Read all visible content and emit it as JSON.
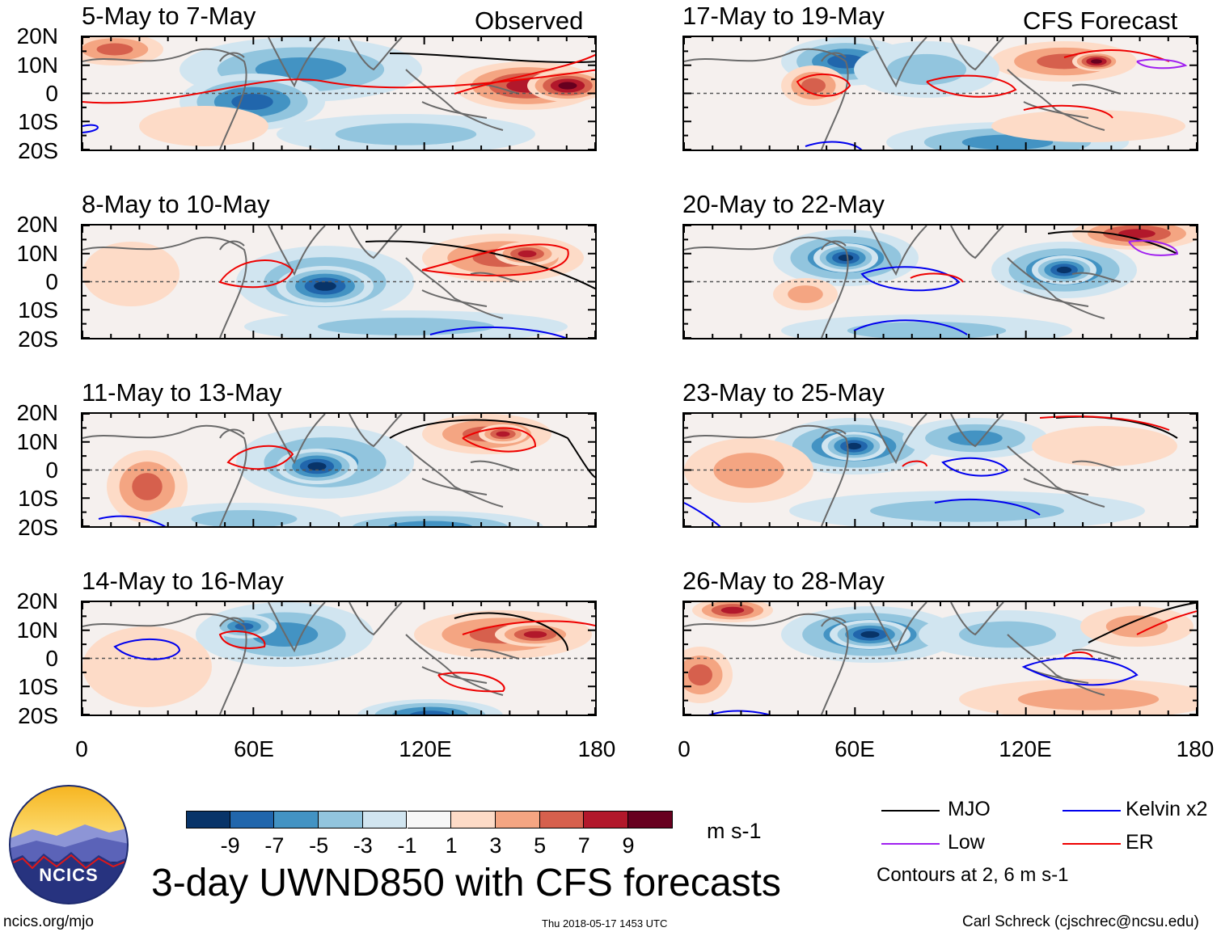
{
  "header": {
    "observed_label": "Observed",
    "forecast_label": "CFS Forecast"
  },
  "panels": [
    {
      "title": "5-May to 7-May"
    },
    {
      "title": "8-May to 10-May"
    },
    {
      "title": "11-May to 13-May"
    },
    {
      "title": "14-May to 16-May"
    },
    {
      "title": "17-May to 19-May"
    },
    {
      "title": "20-May to 22-May"
    },
    {
      "title": "23-May to 25-May"
    },
    {
      "title": "26-May to 28-May"
    }
  ],
  "y_axis": [
    "20N",
    "10N",
    "0",
    "10S",
    "20S"
  ],
  "x_axis": [
    "0",
    "60E",
    "120E",
    "180"
  ],
  "chart_data": {
    "type": "heatmap",
    "title": "3-day UWND850 with CFS forecasts",
    "variable": "UWND850",
    "units": "m s-1",
    "xlim": [
      0,
      180
    ],
    "ylim": [
      -20,
      20
    ],
    "colorbar": {
      "labels": [
        "-9",
        "-7",
        "-5",
        "-3",
        "-1",
        "1",
        "3",
        "5",
        "7",
        "9"
      ],
      "colors": [
        "#083469",
        "#2166ac",
        "#4393c3",
        "#92c5de",
        "#d1e5f0",
        "#f7f7f7",
        "#fddbc7",
        "#f4a582",
        "#d6604d",
        "#b2182b",
        "#67001f"
      ]
    },
    "legend": [
      {
        "label": "MJO",
        "color": "#000000"
      },
      {
        "label": "Kelvin x2",
        "color": "#0000ee"
      },
      {
        "label": "Low",
        "color": "#a020f0"
      },
      {
        "label": "ER",
        "color": "#ee0000"
      }
    ],
    "contour_note": "Contours at 2, 6 m s-1"
  },
  "footer": {
    "site": "ncics.org/mjo",
    "timestamp": "Thu 2018-05-17 1453 UTC",
    "credit": "Carl Schreck (cjschrec@ncsu.edu)",
    "logo_text": "NCICS"
  }
}
